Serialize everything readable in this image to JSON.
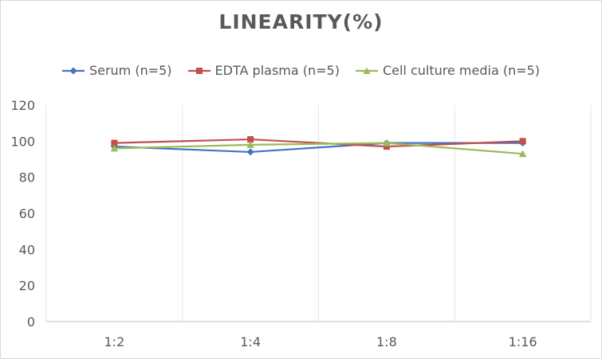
{
  "chart_data": {
    "type": "line",
    "title": "LINEARITY(%)",
    "xlabel": "",
    "ylabel": "",
    "categories": [
      "1:2",
      "1:4",
      "1:8",
      "1:16"
    ],
    "ylim": [
      0,
      120
    ],
    "yticks": [
      0,
      20,
      40,
      60,
      80,
      100,
      120
    ],
    "grid": "vertical-category-lines",
    "legend_position": "top",
    "series": [
      {
        "name": "Serum (n=5)",
        "values": [
          97,
          94,
          99,
          99
        ],
        "color": "#4472c4",
        "marker": "diamond"
      },
      {
        "name": "EDTA plasma (n=5)",
        "values": [
          99,
          101,
          97,
          100
        ],
        "color": "#c0504d",
        "marker": "square"
      },
      {
        "name": "Cell culture media (n=5)",
        "values": [
          96,
          98,
          99,
          93
        ],
        "color": "#9bbb59",
        "marker": "triangle"
      }
    ]
  }
}
